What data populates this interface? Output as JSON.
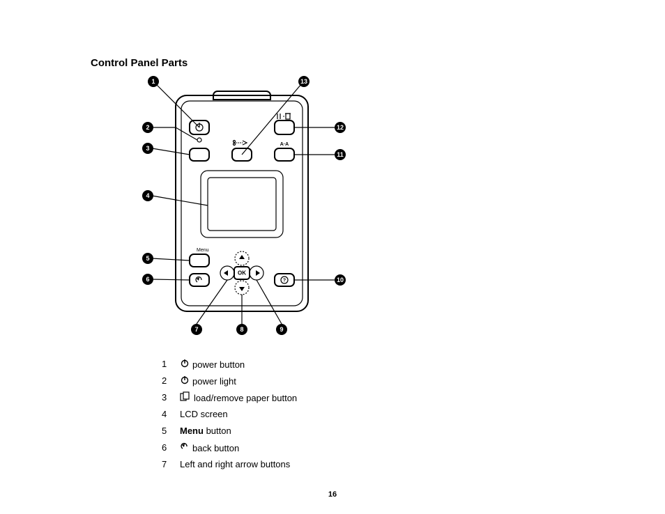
{
  "title": "Control Panel Parts",
  "page_number": "16",
  "callouts": {
    "1": "1",
    "2": "2",
    "3": "3",
    "4": "4",
    "5": "5",
    "6": "6",
    "7": "7",
    "8": "8",
    "9": "9",
    "10": "10",
    "11": "11",
    "12": "12",
    "13": "13"
  },
  "diagram_labels": {
    "menu": "Menu",
    "ok": "OK"
  },
  "legend": [
    {
      "num": "1",
      "icon": "power",
      "text_pre": "",
      "text_bold": "",
      "text_post": "power button"
    },
    {
      "num": "2",
      "icon": "power",
      "text_pre": "",
      "text_bold": "",
      "text_post": "power light"
    },
    {
      "num": "3",
      "icon": "paper",
      "text_pre": "",
      "text_bold": "",
      "text_post": "load/remove paper button"
    },
    {
      "num": "4",
      "icon": "",
      "text_pre": "LCD screen",
      "text_bold": "",
      "text_post": ""
    },
    {
      "num": "5",
      "icon": "",
      "text_pre": "",
      "text_bold": "Menu",
      "text_post": " button"
    },
    {
      "num": "6",
      "icon": "back",
      "text_pre": "",
      "text_bold": "",
      "text_post": "back button"
    },
    {
      "num": "7",
      "icon": "",
      "text_pre": "Left and right arrow buttons",
      "text_bold": "",
      "text_post": ""
    }
  ]
}
